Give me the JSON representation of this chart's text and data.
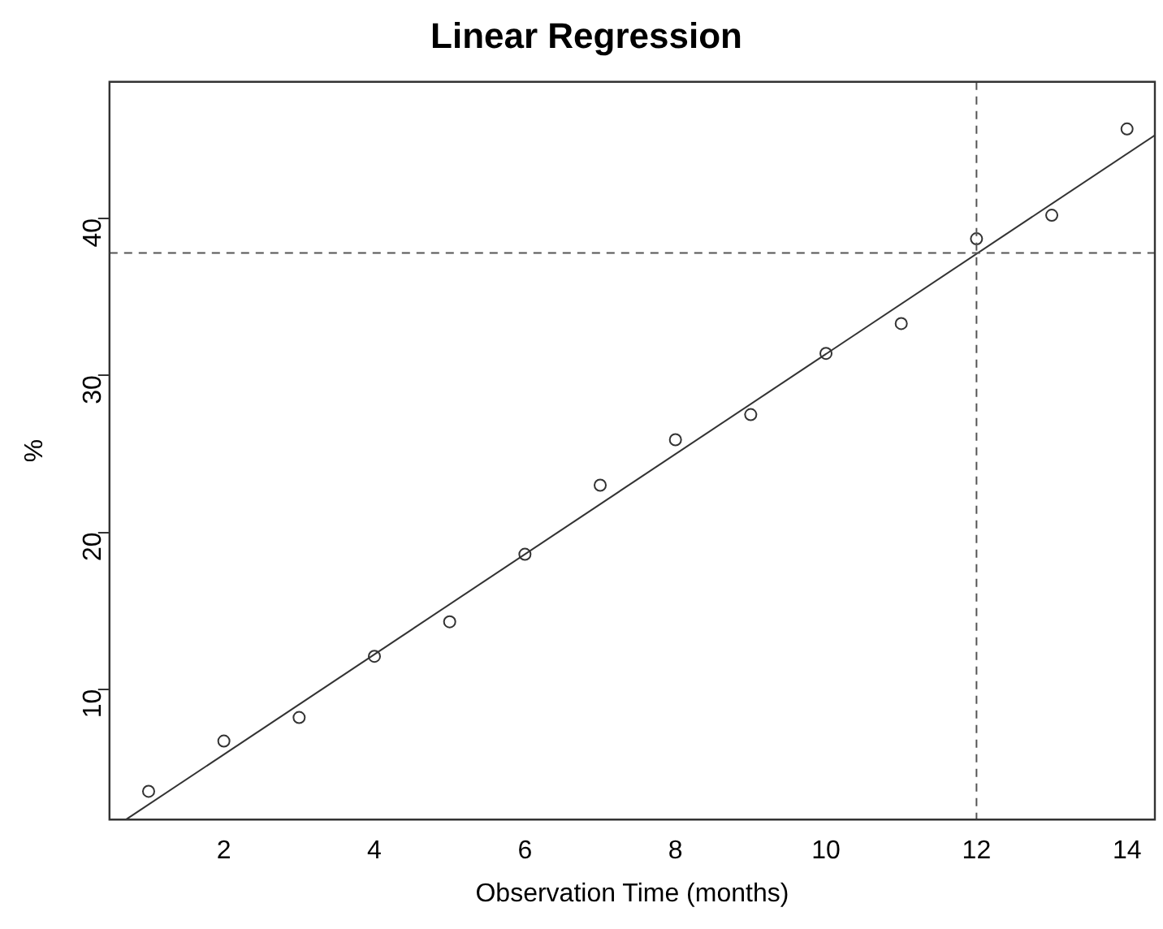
{
  "chart_data": {
    "type": "scatter",
    "title": "Linear Regression",
    "xlabel": "Observation Time (months)",
    "ylabel": "%",
    "x": [
      1,
      2,
      3,
      4,
      5,
      6,
      7,
      8,
      9,
      10,
      11,
      12,
      13,
      14
    ],
    "series": [
      {
        "color": "#333333",
        "marker": "circle",
        "values": [
          3.5,
          6.7,
          8.2,
          12.1,
          14.3,
          18.6,
          23.0,
          25.9,
          27.5,
          31.4,
          33.3,
          38.7,
          40.2,
          45.7
        ]
      },
      {
        "type": "line",
        "color": "#333333",
        "marker": "none",
        "x": [
          0.7,
          14.37
        ],
        "values": [
          1.7,
          45.3
        ]
      }
    ],
    "xlim": [
      0.48,
      14.37
    ],
    "ylim": [
      1.7,
      48.7
    ],
    "xticks": [
      2,
      4,
      6,
      8,
      10,
      12,
      14
    ],
    "yticks": [
      10,
      20,
      30,
      40
    ],
    "ref_lines": [
      {
        "axis": "y",
        "value": 37.8,
        "line_style": "dashed",
        "color": "#555555"
      },
      {
        "axis": "x",
        "value": 12,
        "line_style": "dashed",
        "color": "#555555"
      }
    ],
    "grid": false,
    "legend": false
  }
}
